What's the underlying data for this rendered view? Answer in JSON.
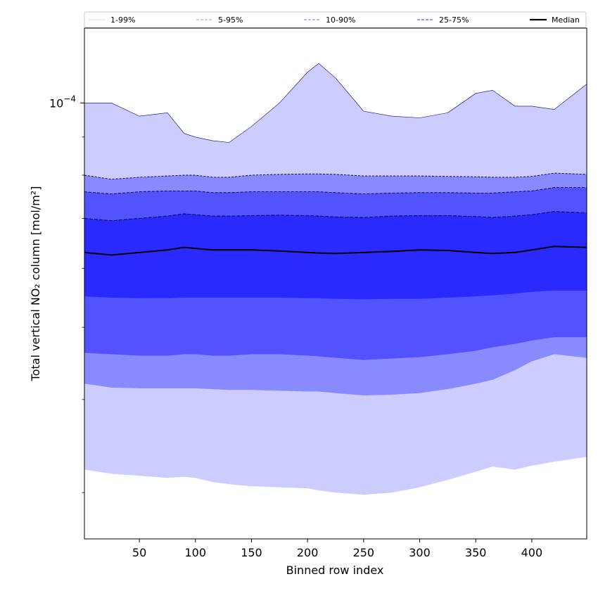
{
  "chart_data": {
    "type": "area",
    "title": "",
    "xlabel": "Binned row index",
    "ylabel": "Total vertical NO₂ column [mol/m²]",
    "yscale": "log",
    "xlim": [
      1,
      449
    ],
    "ylim": [
      2.6e-05,
      0.000126
    ],
    "x_ticks": [
      50,
      100,
      150,
      200,
      250,
      300,
      350,
      400
    ],
    "y_major_tick": {
      "value": 0.0001,
      "label_base": "10",
      "label_exp": "−4"
    },
    "y_minor_ticks": [
      9e-05,
      8e-05,
      7e-05,
      6e-05,
      5e-05,
      4e-05,
      3e-05
    ],
    "grid": false,
    "legend_position": "top",
    "colors": {
      "band_1_99": "#ccccff",
      "band_5_95": "#8a8aff",
      "band_10_90": "#5252ff",
      "band_25_75": "#2a2aff",
      "outline": "#00008b",
      "median": "#000000"
    },
    "legend": [
      {
        "label": "1-99%",
        "style": "thin",
        "color": "#ccccff"
      },
      {
        "label": "5-95%",
        "style": "dashed-thin",
        "color": "#aaaaee"
      },
      {
        "label": "10-90%",
        "style": "dashed",
        "color": "#8888ff"
      },
      {
        "label": "25-75%",
        "style": "dashed",
        "color": "#5555ee"
      },
      {
        "label": "Median",
        "style": "solid-thick",
        "color": "#000000"
      }
    ],
    "x": [
      1,
      25,
      50,
      75,
      90,
      100,
      115,
      130,
      150,
      175,
      200,
      210,
      225,
      250,
      275,
      300,
      325,
      350,
      365,
      385,
      400,
      420,
      449
    ],
    "series": [
      {
        "name": "1-99%",
        "lower": [
          3.22e-05,
          3.18e-05,
          3.16e-05,
          3.14e-05,
          3.15e-05,
          3.14e-05,
          3.1e-05,
          3.08e-05,
          3.06e-05,
          3.05e-05,
          3.04e-05,
          3.02e-05,
          3e-05,
          2.98e-05,
          3e-05,
          3.05e-05,
          3.12e-05,
          3.2e-05,
          3.25e-05,
          3.22e-05,
          3.26e-05,
          3.3e-05,
          3.35e-05
        ],
        "upper": [
          0.0001,
          0.0001,
          9.6e-05,
          9.7e-05,
          9.1e-05,
          9e-05,
          8.9e-05,
          8.85e-05,
          9.3e-05,
          0.0001,
          0.00011,
          0.000113,
          0.000108,
          9.75e-05,
          9.6e-05,
          9.55e-05,
          9.7e-05,
          0.000103,
          0.000104,
          9.9e-05,
          9.9e-05,
          9.8e-05,
          0.000106
        ]
      },
      {
        "name": "5-95%",
        "lower": [
          4.2e-05,
          4.15e-05,
          4.14e-05,
          4.14e-05,
          4.14e-05,
          4.14e-05,
          4.13e-05,
          4.12e-05,
          4.12e-05,
          4.11e-05,
          4.1e-05,
          4.1e-05,
          4.08e-05,
          4.05e-05,
          4.06e-05,
          4.08e-05,
          4.13e-05,
          4.2e-05,
          4.25e-05,
          4.38e-05,
          4.5e-05,
          4.6e-05,
          4.55e-05
        ],
        "upper": [
          8e-05,
          7.9e-05,
          7.95e-05,
          7.98e-05,
          8e-05,
          8e-05,
          7.95e-05,
          7.95e-05,
          8e-05,
          8.02e-05,
          8.03e-05,
          8.03e-05,
          8.02e-05,
          7.98e-05,
          7.98e-05,
          7.98e-05,
          7.97e-05,
          7.96e-05,
          7.95e-05,
          7.95e-05,
          7.97e-05,
          8.05e-05,
          8.02e-05
        ]
      },
      {
        "name": "10-90%",
        "lower": [
          4.62e-05,
          4.6e-05,
          4.58e-05,
          4.58e-05,
          4.6e-05,
          4.6e-05,
          4.58e-05,
          4.58e-05,
          4.6e-05,
          4.6e-05,
          4.58e-05,
          4.57e-05,
          4.55e-05,
          4.52e-05,
          4.54e-05,
          4.56e-05,
          4.6e-05,
          4.65e-05,
          4.7e-05,
          4.75e-05,
          4.8e-05,
          4.85e-05,
          4.85e-05
        ],
        "upper": [
          7.6e-05,
          7.55e-05,
          7.6e-05,
          7.62e-05,
          7.62e-05,
          7.62e-05,
          7.58e-05,
          7.58e-05,
          7.6e-05,
          7.6e-05,
          7.6e-05,
          7.6e-05,
          7.58e-05,
          7.55e-05,
          7.57e-05,
          7.58e-05,
          7.58e-05,
          7.57e-05,
          7.57e-05,
          7.6e-05,
          7.62e-05,
          7.7e-05,
          7.7e-05
        ]
      },
      {
        "name": "25-75%",
        "lower": [
          5.5e-05,
          5.48e-05,
          5.47e-05,
          5.47e-05,
          5.48e-05,
          5.48e-05,
          5.48e-05,
          5.48e-05,
          5.48e-05,
          5.48e-05,
          5.47e-05,
          5.47e-05,
          5.46e-05,
          5.45e-05,
          5.46e-05,
          5.46e-05,
          5.48e-05,
          5.5e-05,
          5.52e-05,
          5.55e-05,
          5.58e-05,
          5.6e-05,
          5.6e-05
        ],
        "upper": [
          7e-05,
          6.95e-05,
          7e-05,
          7.05e-05,
          7.1e-05,
          7.08e-05,
          7.05e-05,
          7.05e-05,
          7.06e-05,
          7.07e-05,
          7.06e-05,
          7.05e-05,
          7.03e-05,
          7.02e-05,
          7.05e-05,
          7.06e-05,
          7.06e-05,
          7.04e-05,
          7.02e-05,
          7.05e-05,
          7.08e-05,
          7.15e-05,
          7.12e-05
        ]
      },
      {
        "name": "Median",
        "values": [
          6.3e-05,
          6.25e-05,
          6.3e-05,
          6.35e-05,
          6.4e-05,
          6.38e-05,
          6.35e-05,
          6.35e-05,
          6.35e-05,
          6.33e-05,
          6.3e-05,
          6.29e-05,
          6.28e-05,
          6.3e-05,
          6.32e-05,
          6.35e-05,
          6.34e-05,
          6.3e-05,
          6.28e-05,
          6.3e-05,
          6.35e-05,
          6.42e-05,
          6.4e-05
        ]
      }
    ]
  }
}
